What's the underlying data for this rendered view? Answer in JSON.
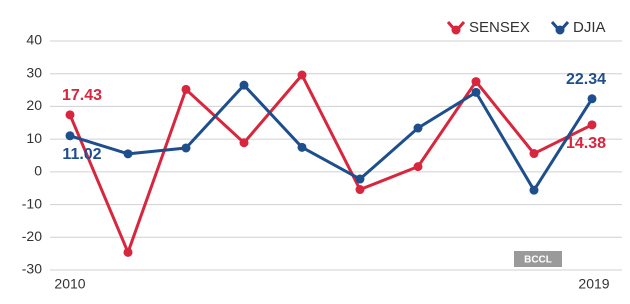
{
  "chart_data": {
    "type": "line",
    "categories": [
      "2010",
      null,
      null,
      null,
      null,
      null,
      null,
      null,
      null,
      "2019"
    ],
    "series": [
      {
        "name": "SENSEX",
        "color": "#d7263d",
        "values": [
          17.43,
          -24.6,
          25.2,
          8.9,
          29.6,
          -5.4,
          1.6,
          27.6,
          5.6,
          14.38
        ]
      },
      {
        "name": "DJIA",
        "color": "#1f4e8c",
        "values": [
          11.02,
          5.5,
          7.3,
          26.5,
          7.5,
          -2.2,
          13.4,
          24.3,
          -5.6,
          22.34
        ]
      }
    ],
    "ylim": [
      -30,
      40
    ],
    "yticks": [
      -30,
      -20,
      -10,
      0,
      10,
      20,
      30,
      40
    ],
    "grid": true,
    "legend": "top-right",
    "watermark": "BCCL"
  }
}
